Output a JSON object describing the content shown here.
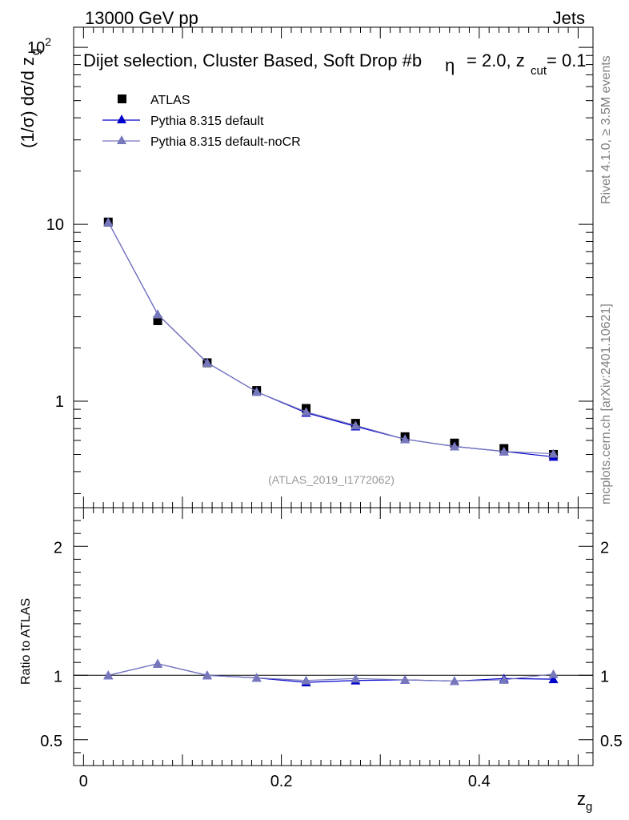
{
  "header": {
    "left": "13000 GeV pp",
    "right": "Jets"
  },
  "plot_title": "Dijet selection, Cluster Based, Soft Drop #b",
  "plot_title_cont": "= 2.0, z",
  "plot_title_sub": "cut",
  "plot_title_end": "= 0.1",
  "beta_symbol": "η",
  "side_labels": {
    "rivet": "Rivet 4.1.0, ≥ 3.5M events",
    "mcplots": "mcplots.cern.ch [arXiv:2401.10621]"
  },
  "analysis_id": "(ATLAS_2019_I1772062)",
  "legend": [
    {
      "label": "ATLAS",
      "color": "#000000",
      "marker": "square"
    },
    {
      "label": "Pythia 8.315 default",
      "color": "#0000cc",
      "marker": "triangle"
    },
    {
      "label": "Pythia 8.315 default-noCR",
      "color": "#7777bb",
      "marker": "triangle"
    }
  ],
  "chart_data": [
    {
      "type": "line",
      "panel": "main",
      "yscale": "log",
      "ylabel": "(1/σ) dσ/d z",
      "ylabel_sub": "g",
      "xlim": [
        -0.01,
        0.515
      ],
      "ylim": [
        0.25,
        130
      ],
      "yticks": [
        {
          "value": 100,
          "label": "10",
          "sup": "2"
        },
        {
          "value": 10,
          "label": "10",
          "sup": ""
        },
        {
          "value": 1,
          "label": "1",
          "sup": ""
        }
      ],
      "x": [
        0.025,
        0.075,
        0.125,
        0.175,
        0.225,
        0.275,
        0.325,
        0.375,
        0.425,
        0.475
      ],
      "series": [
        {
          "name": "ATLAS",
          "values": [
            10.3,
            2.85,
            1.65,
            1.15,
            0.91,
            0.75,
            0.63,
            0.58,
            0.54,
            0.5
          ]
        },
        {
          "name": "Pythia 8.315 default",
          "values": [
            10.3,
            3.1,
            1.65,
            1.13,
            0.86,
            0.72,
            0.61,
            0.555,
            0.52,
            0.485
          ]
        },
        {
          "name": "Pythia 8.315 default-noCR",
          "values": [
            10.3,
            3.1,
            1.65,
            1.13,
            0.87,
            0.73,
            0.61,
            0.555,
            0.52,
            0.505
          ]
        }
      ]
    },
    {
      "type": "line",
      "panel": "ratio",
      "ylabel": "Ratio to ATLAS",
      "xlabel": "z",
      "xlabel_sub": "g",
      "xlim": [
        -0.01,
        0.515
      ],
      "ylim": [
        0.3,
        2.3
      ],
      "reference": 1,
      "yticks": [
        {
          "value": 2,
          "label": "2"
        },
        {
          "value": 1,
          "label": "1"
        },
        {
          "value": 0.5,
          "label": "0.5"
        }
      ],
      "xticks": [
        {
          "value": 0,
          "label": "0"
        },
        {
          "value": 0.2,
          "label": "0.2"
        },
        {
          "value": 0.4,
          "label": "0.4"
        }
      ],
      "x": [
        0.025,
        0.075,
        0.125,
        0.175,
        0.225,
        0.275,
        0.325,
        0.375,
        0.425,
        0.475
      ],
      "series": [
        {
          "name": "Pythia 8.315 default",
          "values": [
            1.0,
            1.09,
            1.0,
            0.98,
            0.945,
            0.96,
            0.965,
            0.955,
            0.975,
            0.97
          ]
        },
        {
          "name": "Pythia 8.315 default-noCR",
          "values": [
            1.0,
            1.09,
            1.0,
            0.98,
            0.96,
            0.975,
            0.965,
            0.955,
            0.965,
            1.01
          ]
        }
      ]
    }
  ]
}
